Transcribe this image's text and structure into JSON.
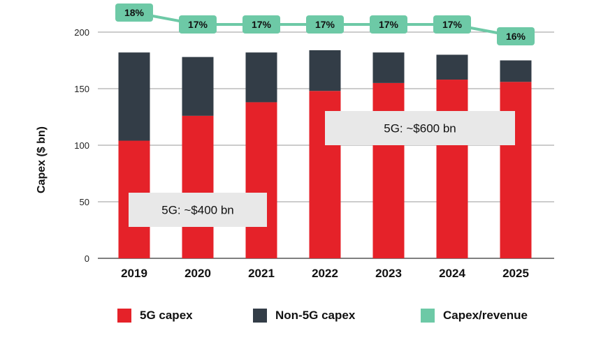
{
  "chart_data": {
    "type": "bar",
    "stacked": true,
    "categories": [
      "2019",
      "2020",
      "2021",
      "2022",
      "2023",
      "2024",
      "2025"
    ],
    "series": [
      {
        "name": "5G capex",
        "values": [
          104,
          126,
          138,
          148,
          155,
          158,
          156
        ],
        "color": "#e52229"
      },
      {
        "name": "Non-5G capex",
        "values": [
          78,
          52,
          44,
          36,
          27,
          22,
          19
        ],
        "color": "#333d47"
      }
    ],
    "line_series": {
      "name": "Capex/revenue",
      "labels": [
        "18%",
        "17%",
        "17%",
        "17%",
        "17%",
        "17%",
        "16%"
      ],
      "values": [
        18,
        17,
        17,
        17,
        17,
        17,
        16
      ],
      "color": "#6dc9a6"
    },
    "ylabel": "Capex ($ bn)",
    "ylim": [
      0,
      200
    ],
    "yticks": [
      0,
      50,
      100,
      150,
      200
    ],
    "grid": true,
    "legend_position": "bottom",
    "annotations": [
      {
        "text": "5G: ~$400 bn"
      },
      {
        "text": "5G: ~$600 bn"
      }
    ]
  }
}
